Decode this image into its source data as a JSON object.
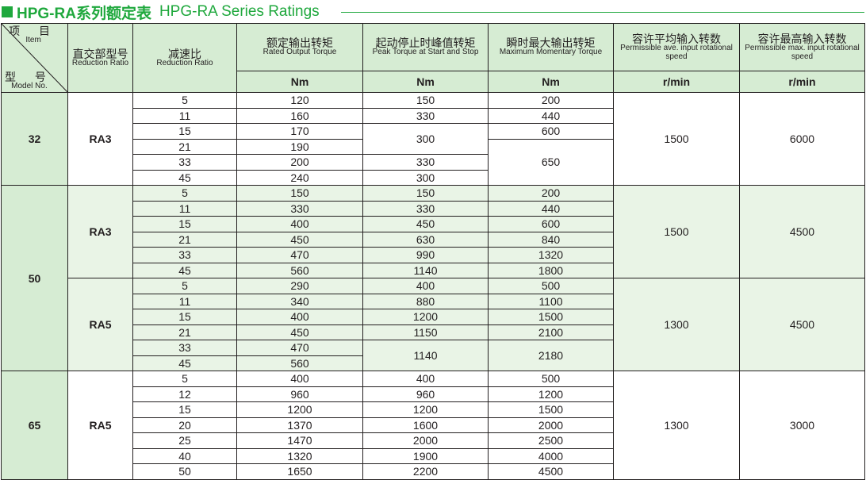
{
  "title": {
    "cn": "HPG-RA系列额定表",
    "en": "HPG-RA Series Ratings"
  },
  "colors": {
    "accent": "#1fa83d",
    "header_bg": "#d6ecd3",
    "alt_row_bg": "#e9f4e6"
  },
  "header": {
    "corner": {
      "item_cn": "项 目",
      "item_en": "Item",
      "model_cn": "型 号",
      "model_en": "Model No."
    },
    "columns": [
      {
        "cn": "直交部型号",
        "en": "Reduction Ratio"
      },
      {
        "cn": "减速比",
        "en": "Reduction Ratio"
      },
      {
        "cn": "额定输出转矩",
        "en": "Rated Output Torque",
        "unit": "Nm"
      },
      {
        "cn": "起动停止时峰值转矩",
        "en": "Peak Torque at Start and Stop",
        "unit": "Nm"
      },
      {
        "cn": "瞬时最大输出转矩",
        "en": "Maximum Momentary Torque",
        "unit": "Nm"
      },
      {
        "cn": "容许平均输入转数",
        "en": "Permissible ave. input rotational speed",
        "unit": "r/min"
      },
      {
        "cn": "容许最高输入转数",
        "en": "Permissible max. input rotational speed",
        "unit": "r/min"
      }
    ]
  },
  "groups": [
    {
      "model": "32",
      "subgroups": [
        {
          "type": "RA3",
          "avg_speed": "1500",
          "max_speed": "6000",
          "rows": [
            {
              "ratio": "5",
              "rated": "120",
              "peak": "150",
              "max": "200"
            },
            {
              "ratio": "11",
              "rated": "160",
              "peak": "330",
              "max": "440"
            },
            {
              "ratio": "15",
              "rated": "170",
              "peak": "300",
              "max": "600"
            },
            {
              "ratio": "21",
              "rated": "190",
              "peak": null,
              "max": "650"
            },
            {
              "ratio": "33",
              "rated": "200",
              "peak": "330",
              "max": null
            },
            {
              "ratio": "45",
              "rated": "240",
              "peak": "300",
              "max": null
            }
          ]
        }
      ]
    },
    {
      "model": "50",
      "subgroups": [
        {
          "type": "RA3",
          "avg_speed": "1500",
          "max_speed": "4500",
          "rows": [
            {
              "ratio": "5",
              "rated": "150",
              "peak": "150",
              "max": "200"
            },
            {
              "ratio": "11",
              "rated": "330",
              "peak": "330",
              "max": "440"
            },
            {
              "ratio": "15",
              "rated": "400",
              "peak": "450",
              "max": "600"
            },
            {
              "ratio": "21",
              "rated": "450",
              "peak": "630",
              "max": "840"
            },
            {
              "ratio": "33",
              "rated": "470",
              "peak": "990",
              "max": "1320"
            },
            {
              "ratio": "45",
              "rated": "560",
              "peak": "1140",
              "max": "1800"
            }
          ]
        },
        {
          "type": "RA5",
          "avg_speed": "1300",
          "max_speed": "4500",
          "rows": [
            {
              "ratio": "5",
              "rated": "290",
              "peak": "400",
              "max": "500"
            },
            {
              "ratio": "11",
              "rated": "340",
              "peak": "880",
              "max": "1100"
            },
            {
              "ratio": "15",
              "rated": "400",
              "peak": "1200",
              "max": "1500"
            },
            {
              "ratio": "21",
              "rated": "450",
              "peak": "1150",
              "max": "2100"
            },
            {
              "ratio": "33",
              "rated": "470",
              "peak": "1140",
              "max": "2180"
            },
            {
              "ratio": "45",
              "rated": "560",
              "peak": null,
              "max": null
            }
          ]
        }
      ]
    },
    {
      "model": "65",
      "subgroups": [
        {
          "type": "RA5",
          "avg_speed": "1300",
          "max_speed": "3000",
          "rows": [
            {
              "ratio": "5",
              "rated": "400",
              "peak": "400",
              "max": "500"
            },
            {
              "ratio": "12",
              "rated": "960",
              "peak": "960",
              "max": "1200"
            },
            {
              "ratio": "15",
              "rated": "1200",
              "peak": "1200",
              "max": "1500"
            },
            {
              "ratio": "20",
              "rated": "1370",
              "peak": "1600",
              "max": "2000"
            },
            {
              "ratio": "25",
              "rated": "1470",
              "peak": "2000",
              "max": "2500"
            },
            {
              "ratio": "40",
              "rated": "1320",
              "peak": "1900",
              "max": "4000"
            },
            {
              "ratio": "50",
              "rated": "1650",
              "peak": "2200",
              "max": "4500"
            }
          ]
        }
      ]
    }
  ]
}
